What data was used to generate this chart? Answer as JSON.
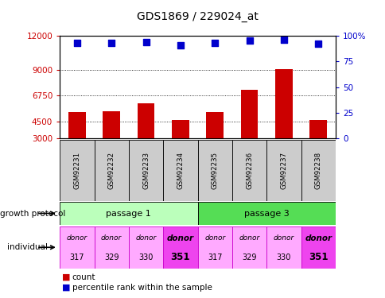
{
  "title": "GDS1869 / 229024_at",
  "samples": [
    "GSM92231",
    "GSM92232",
    "GSM92233",
    "GSM92234",
    "GSM92235",
    "GSM92236",
    "GSM92237",
    "GSM92238"
  ],
  "counts": [
    5300,
    5400,
    6100,
    4600,
    5350,
    7300,
    9100,
    4600
  ],
  "percentile_ranks": [
    93,
    93,
    94,
    91,
    93,
    95,
    96,
    92
  ],
  "ylim_left": [
    3000,
    12000
  ],
  "ylim_right": [
    0,
    100
  ],
  "yticks_left": [
    3000,
    4500,
    6750,
    9000,
    12000
  ],
  "yticks_right": [
    0,
    25,
    50,
    75,
    100
  ],
  "ytick_labels_left": [
    "3000",
    "4500",
    "6750",
    "9000",
    "12000"
  ],
  "ytick_labels_right": [
    "0",
    "25",
    "50",
    "75",
    "100%"
  ],
  "hlines": [
    4500,
    6750,
    9000
  ],
  "bar_color": "#cc0000",
  "dot_color": "#0000cc",
  "bar_bottom": 3000,
  "passage1_label": "passage 1",
  "passage3_label": "passage 3",
  "passage1_color": "#bbffbb",
  "passage3_color": "#55dd55",
  "ind_bold": [
    false,
    false,
    false,
    true,
    false,
    false,
    false,
    true
  ],
  "ind_numbers": [
    "317",
    "329",
    "330",
    "351",
    "317",
    "329",
    "330",
    "351"
  ],
  "individual_color_light": "#ffaaff",
  "individual_color_bold": "#ee44ee",
  "growth_protocol_label": "growth protocol",
  "individual_row_label": "individual",
  "legend_count_color": "#cc0000",
  "legend_pct_color": "#0000cc"
}
